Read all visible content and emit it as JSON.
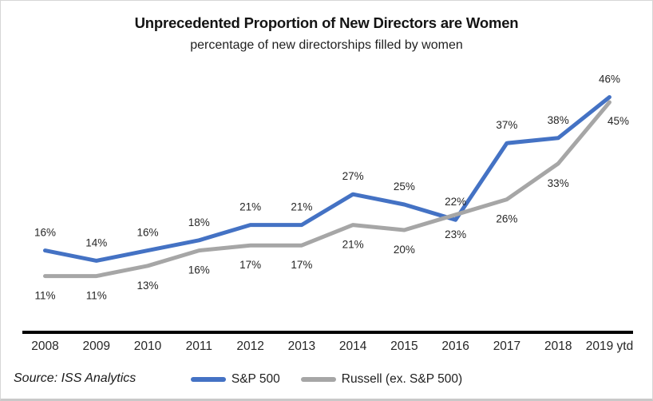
{
  "header": {
    "title": "Unprecedented Proportion of New Directors are Women",
    "subtitle": "percentage of new directorships filled by women"
  },
  "source": {
    "label": "Source: ISS Analytics"
  },
  "chart_data": {
    "type": "line",
    "title": "Unprecedented Proportion of New Directors are Women",
    "subtitle": "percentage of new directorships filled by women",
    "categories": [
      "2008",
      "2009",
      "2010",
      "2011",
      "2012",
      "2013",
      "2014",
      "2015",
      "2016",
      "2017",
      "2018",
      "2019 ytd"
    ],
    "series": [
      {
        "name": "S&P 500",
        "color": "#4472C4",
        "values": [
          16,
          14,
          16,
          18,
          21,
          21,
          27,
          25,
          22,
          37,
          38,
          46
        ],
        "labels": [
          "16%",
          "14%",
          "16%",
          "18%",
          "21%",
          "21%",
          "27%",
          "25%",
          "22%",
          "37%",
          "38%",
          "46%"
        ],
        "label_position": "above"
      },
      {
        "name": "Russell (ex. S&P 500)",
        "color": "#A6A6A6",
        "values": [
          11,
          11,
          13,
          16,
          17,
          17,
          21,
          20,
          23,
          26,
          33,
          45
        ],
        "labels": [
          "11%",
          "11%",
          "13%",
          "16%",
          "17%",
          "17%",
          "21%",
          "20%",
          "23%",
          "26%",
          "33%",
          "45%"
        ],
        "label_position": "below",
        "label_overrides": {
          "11": {
            "dx": 11,
            "dy": 28
          }
        }
      }
    ],
    "ylim": [
      0,
      50
    ],
    "xlabel": "",
    "ylabel": "",
    "grid": false,
    "y_axis_visible": false,
    "x_axis": {
      "line": true,
      "color": "#000000"
    },
    "legend_position": "bottom"
  }
}
